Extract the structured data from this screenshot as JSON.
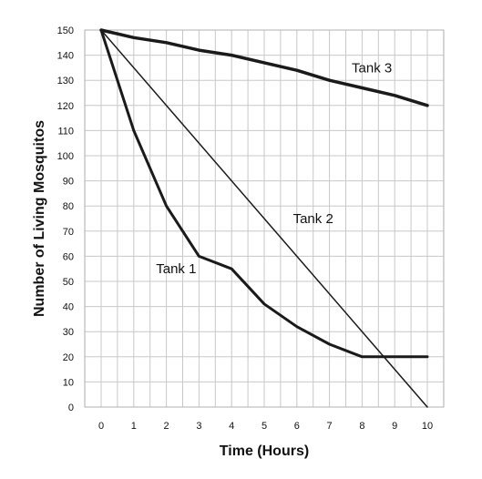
{
  "chart_data": {
    "type": "line",
    "title": "",
    "xlabel": "Time (Hours)",
    "ylabel": "Number of Living Mosquitos",
    "xlim": [
      0,
      10
    ],
    "ylim": [
      0,
      150
    ],
    "x_ticks": [
      0,
      1,
      2,
      3,
      4,
      5,
      6,
      7,
      8,
      9,
      10
    ],
    "y_ticks": [
      0,
      10,
      20,
      30,
      40,
      50,
      60,
      70,
      80,
      90,
      100,
      110,
      120,
      130,
      140,
      150
    ],
    "x_minor_step": 0.5,
    "grid": true,
    "legend": "none",
    "line_color": "#1a1a1a",
    "grid_color": "#c8c8c8",
    "series": [
      {
        "name": "Tank 1",
        "x": [
          0,
          1,
          2,
          3,
          4,
          5,
          6,
          7,
          8,
          9,
          10
        ],
        "values": [
          150,
          110,
          80,
          60,
          55,
          41,
          32,
          25,
          20,
          20,
          20
        ],
        "label_at": [
          2.3,
          55
        ]
      },
      {
        "name": "Tank 2",
        "x": [
          0,
          10
        ],
        "values": [
          150,
          0
        ],
        "label_at": [
          6.5,
          75
        ]
      },
      {
        "name": "Tank 3",
        "x": [
          0,
          1,
          2,
          3,
          4,
          5,
          6,
          7,
          8,
          9,
          10
        ],
        "values": [
          150,
          147,
          145,
          142,
          140,
          137,
          134,
          130,
          127,
          124,
          120
        ],
        "label_at": [
          8.3,
          135
        ]
      }
    ]
  }
}
